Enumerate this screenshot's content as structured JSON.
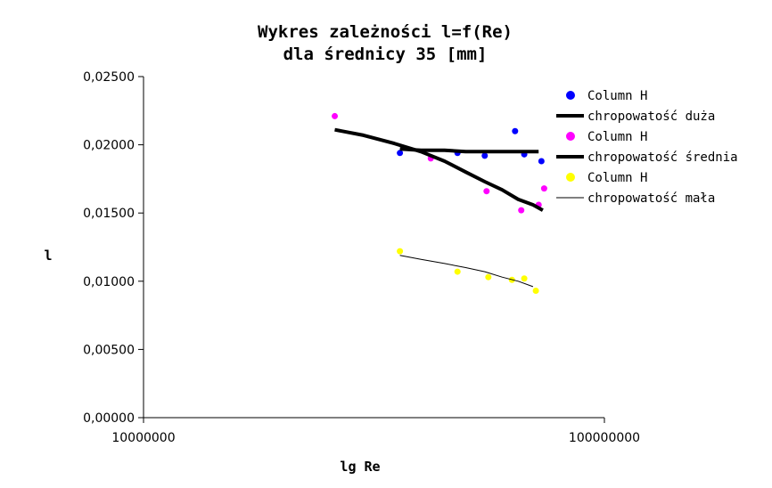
{
  "chart_data": {
    "type": "scatter",
    "title": [
      "Wykres zależności l=f(Re)",
      "dla średnicy 35 [mm]"
    ],
    "xlabel": "lg Re",
    "ylabel": "l",
    "x_scale": "log",
    "xlim": [
      10000000,
      100000000
    ],
    "ylim": [
      0,
      0.025
    ],
    "x_ticks": [
      10000000,
      100000000
    ],
    "x_tick_labels": [
      "10000000",
      "100000000"
    ],
    "y_ticks": [
      0,
      0.005,
      0.01,
      0.015,
      0.02,
      0.025
    ],
    "y_tick_labels": [
      "0,00000",
      "0,00500",
      "0,01000",
      "0,01500",
      "0,02000",
      "0,02500"
    ],
    "legend_position": "right",
    "series": [
      {
        "name": "Column H",
        "kind": "points",
        "color": "#0000ff",
        "x": [
          36000000,
          48000000,
          55000000,
          64000000,
          67000000,
          73000000
        ],
        "y": [
          0.0194,
          0.0194,
          0.0192,
          0.021,
          0.0193,
          0.0188
        ]
      },
      {
        "name": "chropowatość duża",
        "kind": "line",
        "color": "#000000",
        "width": 4,
        "x": [
          36000000,
          40000000,
          45000000,
          50000000,
          55000000,
          60000000,
          65000000,
          72000000
        ],
        "y": [
          0.0197,
          0.0196,
          0.0196,
          0.0195,
          0.0195,
          0.0195,
          0.0195,
          0.0195
        ]
      },
      {
        "name": "Column H",
        "kind": "points",
        "color": "#ff00ff",
        "x": [
          26000000,
          42000000,
          55500000,
          66000000,
          72000000,
          74000000
        ],
        "y": [
          0.0221,
          0.019,
          0.0166,
          0.0152,
          0.0156,
          0.0168
        ]
      },
      {
        "name": "chropowatość średnia",
        "kind": "line",
        "color": "#000000",
        "width": 4,
        "x": [
          26000000,
          30000000,
          35000000,
          40000000,
          45000000,
          50000000,
          55000000,
          60000000,
          65000000,
          70000000,
          73500000
        ],
        "y": [
          0.0211,
          0.0207,
          0.0201,
          0.0195,
          0.0188,
          0.018,
          0.0173,
          0.0167,
          0.016,
          0.0156,
          0.0152
        ]
      },
      {
        "name": "Column H",
        "kind": "points",
        "color": "#ffff00",
        "x": [
          36000000,
          48000000,
          56000000,
          63000000,
          67000000,
          71000000
        ],
        "y": [
          0.0122,
          0.0107,
          0.0103,
          0.0101,
          0.0102,
          0.0093
        ]
      },
      {
        "name": "chropowatość mała",
        "kind": "line",
        "color": "#000000",
        "width": 1,
        "x": [
          36000000,
          40000000,
          45000000,
          50000000,
          55000000,
          60000000,
          65000000,
          70000000
        ],
        "y": [
          0.0119,
          0.0116,
          0.0113,
          0.011,
          0.0107,
          0.0103,
          0.01,
          0.0096
        ]
      }
    ]
  }
}
